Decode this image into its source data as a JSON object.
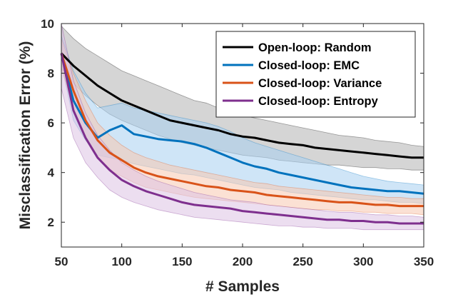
{
  "chart_data": {
    "type": "line",
    "title": "",
    "xlabel": "# Samples",
    "ylabel": "Misclassification Error (%)",
    "xlim": [
      50,
      350
    ],
    "ylim": [
      1,
      10
    ],
    "xticks": [
      50,
      100,
      150,
      200,
      250,
      300,
      350
    ],
    "yticks": [
      2,
      4,
      6,
      8,
      10
    ],
    "grid": false,
    "legend_position": "top-right",
    "series": [
      {
        "name": "Open-loop: Random",
        "color": "#000000",
        "band_color": "#b3b3b3",
        "x": [
          50,
          60,
          70,
          80,
          90,
          100,
          110,
          120,
          130,
          140,
          150,
          160,
          170,
          180,
          190,
          200,
          210,
          220,
          230,
          240,
          250,
          260,
          270,
          280,
          290,
          300,
          310,
          320,
          330,
          340,
          350
        ],
        "y": [
          8.8,
          8.3,
          7.9,
          7.5,
          7.2,
          6.9,
          6.7,
          6.5,
          6.3,
          6.1,
          6.0,
          5.9,
          5.8,
          5.7,
          5.55,
          5.45,
          5.4,
          5.3,
          5.2,
          5.15,
          5.1,
          5.0,
          4.95,
          4.9,
          4.85,
          4.8,
          4.75,
          4.7,
          4.65,
          4.6,
          4.6
        ],
        "lower": [
          8.2,
          7.6,
          7.1,
          6.7,
          6.35,
          6.1,
          5.9,
          5.7,
          5.5,
          5.35,
          5.2,
          5.1,
          5.0,
          4.9,
          4.8,
          4.7,
          4.65,
          4.6,
          4.5,
          4.45,
          4.4,
          4.35,
          4.3,
          4.3,
          4.25,
          4.2,
          4.2,
          4.15,
          4.15,
          4.1,
          4.1
        ],
        "upper": [
          9.9,
          9.4,
          9.0,
          8.7,
          8.4,
          8.1,
          7.9,
          7.7,
          7.5,
          7.3,
          7.1,
          6.9,
          6.8,
          6.6,
          6.45,
          6.3,
          6.2,
          6.1,
          6.0,
          5.9,
          5.8,
          5.7,
          5.6,
          5.5,
          5.45,
          5.4,
          5.3,
          5.25,
          5.2,
          5.1,
          5.05
        ]
      },
      {
        "name": "Closed-loop: EMC",
        "color": "#0072bd",
        "band_color": "#a7cff0",
        "x": [
          50,
          60,
          70,
          80,
          90,
          100,
          110,
          120,
          130,
          140,
          150,
          160,
          170,
          180,
          190,
          200,
          210,
          220,
          230,
          240,
          250,
          260,
          270,
          280,
          290,
          300,
          310,
          320,
          330,
          340,
          350
        ],
        "y": [
          8.8,
          6.9,
          6.0,
          5.4,
          5.7,
          5.9,
          5.55,
          5.45,
          5.35,
          5.3,
          5.25,
          5.15,
          5.0,
          4.8,
          4.6,
          4.4,
          4.25,
          4.15,
          4.0,
          3.9,
          3.8,
          3.7,
          3.6,
          3.5,
          3.4,
          3.35,
          3.3,
          3.25,
          3.25,
          3.2,
          3.15
        ],
        "lower": [
          8.4,
          6.1,
          5.3,
          4.7,
          4.6,
          4.5,
          4.35,
          4.25,
          4.15,
          4.05,
          3.95,
          3.9,
          3.8,
          3.7,
          3.6,
          3.5,
          3.4,
          3.35,
          3.3,
          3.2,
          3.15,
          3.1,
          3.05,
          3.0,
          2.95,
          2.9,
          2.9,
          2.85,
          2.8,
          2.8,
          2.75
        ],
        "upper": [
          9.5,
          8.1,
          7.2,
          6.6,
          6.7,
          6.8,
          6.6,
          6.5,
          6.4,
          6.3,
          6.2,
          6.1,
          6.0,
          5.85,
          5.65,
          5.4,
          5.2,
          5.05,
          4.9,
          4.75,
          4.6,
          4.45,
          4.3,
          4.15,
          4.0,
          3.85,
          3.75,
          3.65,
          3.6,
          3.55,
          3.5
        ]
      },
      {
        "name": "Closed-loop: Variance",
        "color": "#d95319",
        "band_color": "#f7c8b0",
        "x": [
          50,
          60,
          70,
          80,
          90,
          100,
          110,
          120,
          130,
          140,
          150,
          160,
          170,
          180,
          190,
          200,
          210,
          220,
          230,
          240,
          250,
          260,
          270,
          280,
          290,
          300,
          310,
          320,
          330,
          340,
          350
        ],
        "y": [
          8.8,
          7.3,
          6.1,
          5.3,
          4.8,
          4.5,
          4.2,
          4.0,
          3.85,
          3.75,
          3.65,
          3.55,
          3.45,
          3.4,
          3.3,
          3.25,
          3.2,
          3.1,
          3.05,
          3.0,
          2.95,
          2.9,
          2.85,
          2.8,
          2.8,
          2.75,
          2.7,
          2.7,
          2.65,
          2.65,
          2.65
        ],
        "lower": [
          8.2,
          6.6,
          5.4,
          4.6,
          4.1,
          3.85,
          3.6,
          3.4,
          3.3,
          3.2,
          3.1,
          3.0,
          2.95,
          2.9,
          2.85,
          2.8,
          2.75,
          2.7,
          2.65,
          2.6,
          2.55,
          2.5,
          2.5,
          2.45,
          2.45,
          2.4,
          2.4,
          2.35,
          2.35,
          2.35,
          2.3
        ],
        "upper": [
          9.4,
          8.0,
          6.9,
          6.0,
          5.5,
          5.1,
          4.8,
          4.6,
          4.45,
          4.3,
          4.2,
          4.1,
          4.0,
          3.9,
          3.8,
          3.7,
          3.6,
          3.55,
          3.45,
          3.4,
          3.35,
          3.3,
          3.25,
          3.2,
          3.15,
          3.1,
          3.05,
          3.0,
          3.0,
          2.95,
          2.95
        ]
      },
      {
        "name": "Closed-loop: Entropy",
        "color": "#7e2f8e",
        "band_color": "#dcc2e3",
        "x": [
          50,
          60,
          70,
          80,
          90,
          100,
          110,
          120,
          130,
          140,
          150,
          160,
          170,
          180,
          190,
          200,
          210,
          220,
          230,
          240,
          250,
          260,
          270,
          280,
          290,
          300,
          310,
          320,
          330,
          340,
          350
        ],
        "y": [
          8.8,
          6.5,
          5.4,
          4.6,
          4.1,
          3.7,
          3.45,
          3.25,
          3.1,
          2.95,
          2.8,
          2.7,
          2.65,
          2.6,
          2.55,
          2.45,
          2.4,
          2.35,
          2.3,
          2.25,
          2.2,
          2.15,
          2.1,
          2.1,
          2.05,
          2.05,
          2.0,
          2.0,
          1.95,
          1.95,
          1.95
        ],
        "lower": [
          7.4,
          5.4,
          4.4,
          3.8,
          3.3,
          3.0,
          2.8,
          2.65,
          2.5,
          2.4,
          2.3,
          2.2,
          2.15,
          2.1,
          2.05,
          2.0,
          1.95,
          1.9,
          1.85,
          1.85,
          1.8,
          1.8,
          1.75,
          1.75,
          1.75,
          1.7,
          1.7,
          1.7,
          1.7,
          1.7,
          1.7
        ],
        "upper": [
          10.0,
          7.7,
          6.4,
          5.5,
          4.9,
          4.4,
          4.1,
          3.85,
          3.65,
          3.5,
          3.35,
          3.2,
          3.1,
          3.0,
          2.9,
          2.85,
          2.8,
          2.7,
          2.65,
          2.6,
          2.55,
          2.5,
          2.45,
          2.4,
          2.4,
          2.35,
          2.3,
          2.3,
          2.25,
          2.25,
          2.2
        ]
      }
    ]
  }
}
